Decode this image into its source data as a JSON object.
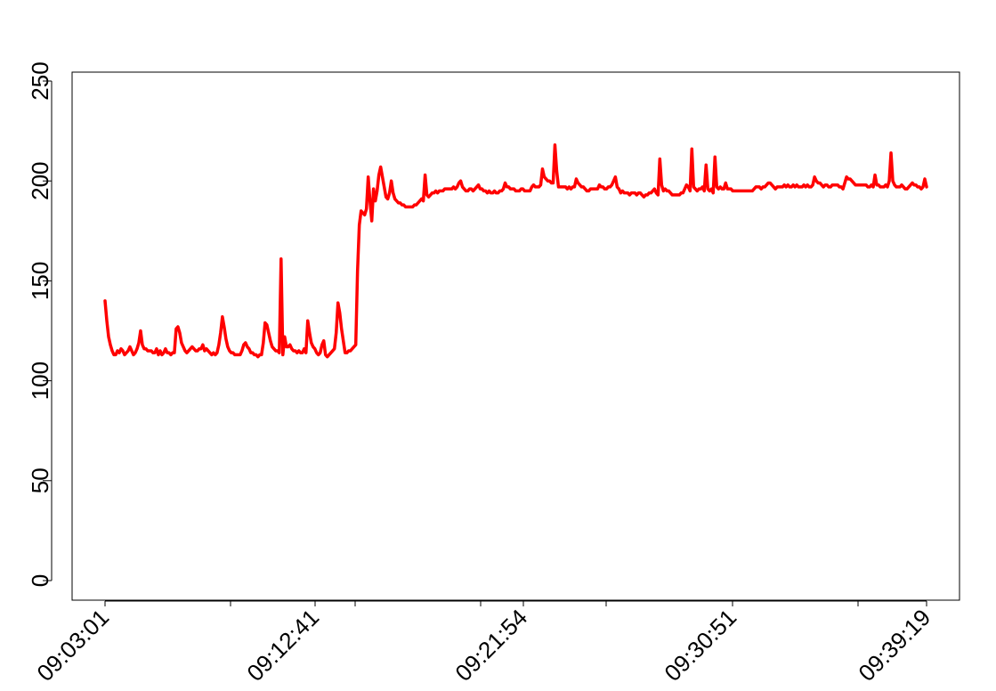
{
  "chart_data": {
    "type": "line",
    "title": "",
    "xlabel": "",
    "ylabel": "",
    "ylim": [
      0,
      250
    ],
    "yticks": [
      0,
      50,
      100,
      150,
      200,
      250
    ],
    "ytick_labels": [
      "0",
      "50",
      "100",
      "150",
      "200",
      "250"
    ],
    "xtick_labels": [
      "09:03:01",
      "09:12:41",
      "09:21:54",
      "09:30:51",
      "09:39:19"
    ],
    "grid": false,
    "legend": "none",
    "series": [
      {
        "color": "#ff0000",
        "values": [
          140,
          130,
          122,
          118,
          115,
          113,
          113,
          115,
          114,
          116,
          115,
          113,
          114,
          115,
          117,
          115,
          113,
          114,
          116,
          119,
          125,
          118,
          116,
          116,
          115,
          115,
          115,
          114,
          114,
          116,
          113,
          115,
          113,
          114,
          116,
          114,
          114,
          113,
          114,
          114,
          126,
          127,
          124,
          119,
          117,
          115,
          114,
          115,
          116,
          117,
          116,
          115,
          115,
          116,
          116,
          118,
          115,
          116,
          115,
          114,
          113,
          114,
          113,
          114,
          118,
          124,
          132,
          127,
          121,
          117,
          115,
          114,
          114,
          113,
          113,
          113,
          113,
          115,
          118,
          119,
          117,
          116,
          114,
          114,
          113,
          113,
          112,
          113,
          113,
          119,
          129,
          128,
          124,
          120,
          117,
          116,
          115,
          115,
          114,
          161,
          113,
          122,
          117,
          117,
          118,
          116,
          115,
          115,
          114,
          115,
          114,
          114,
          116,
          114,
          130,
          124,
          119,
          117,
          116,
          114,
          113,
          114,
          118,
          120,
          113,
          112,
          113,
          114,
          115,
          116,
          124,
          139,
          134,
          126,
          120,
          114,
          114,
          115,
          115,
          116,
          117,
          118,
          155,
          178,
          185,
          184,
          183,
          186,
          202,
          190,
          180,
          196,
          190,
          195,
          203,
          207,
          202,
          197,
          192,
          191,
          194,
          200,
          194,
          191,
          190,
          189,
          189,
          188,
          188,
          187,
          187,
          187,
          187,
          187,
          188,
          188,
          189,
          190,
          191,
          190,
          203,
          193,
          192,
          193,
          194,
          194,
          195,
          194,
          195,
          195,
          195,
          196,
          196,
          196,
          196,
          196,
          197,
          196,
          197,
          199,
          200,
          197,
          196,
          195,
          195,
          196,
          196,
          195,
          196,
          197,
          198,
          196,
          196,
          195,
          195,
          194,
          195,
          194,
          194,
          195,
          194,
          194,
          195,
          195,
          196,
          199,
          197,
          197,
          196,
          196,
          196,
          195,
          195,
          195,
          196,
          196,
          195,
          195,
          195,
          195,
          197,
          198,
          197,
          197,
          197,
          198,
          206,
          202,
          201,
          200,
          200,
          199,
          199,
          218,
          205,
          197,
          197,
          197,
          197,
          197,
          196,
          197,
          196,
          197,
          197,
          201,
          199,
          198,
          197,
          197,
          196,
          195,
          195,
          196,
          196,
          196,
          196,
          196,
          198,
          197,
          197,
          196,
          196,
          197,
          197,
          198,
          200,
          202,
          197,
          196,
          194,
          195,
          194,
          194,
          194,
          193,
          194,
          194,
          194,
          193,
          194,
          194,
          193,
          192,
          193,
          193,
          194,
          194,
          195,
          196,
          194,
          193,
          211,
          198,
          195,
          196,
          195,
          195,
          194,
          193,
          193,
          193,
          193,
          193,
          194,
          194,
          196,
          198,
          197,
          195,
          216,
          197,
          196,
          195,
          196,
          196,
          197,
          195,
          208,
          196,
          195,
          196,
          194,
          212,
          197,
          196,
          197,
          196,
          196,
          199,
          196,
          196,
          196,
          195,
          195,
          195,
          195,
          195,
          195,
          195,
          195,
          195,
          195,
          195,
          195,
          196,
          197,
          197,
          197,
          196,
          197,
          197,
          198,
          199,
          199,
          198,
          197,
          196,
          197,
          197,
          197,
          197,
          198,
          197,
          198,
          197,
          197,
          198,
          197,
          198,
          197,
          197,
          197,
          198,
          197,
          198,
          197,
          197,
          198,
          202,
          200,
          199,
          199,
          198,
          197,
          198,
          198,
          197,
          197,
          198,
          198,
          198,
          198,
          197,
          197,
          196,
          199,
          202,
          201,
          201,
          200,
          199,
          198,
          198,
          198,
          198,
          198,
          198,
          198,
          197,
          197,
          198,
          197,
          203,
          198,
          198,
          197,
          197,
          197,
          198,
          197,
          200,
          214,
          200,
          198,
          197,
          197,
          197,
          198,
          197,
          196,
          196,
          197,
          198,
          199,
          198,
          198,
          197,
          197,
          196,
          197,
          201,
          197
        ]
      }
    ]
  }
}
